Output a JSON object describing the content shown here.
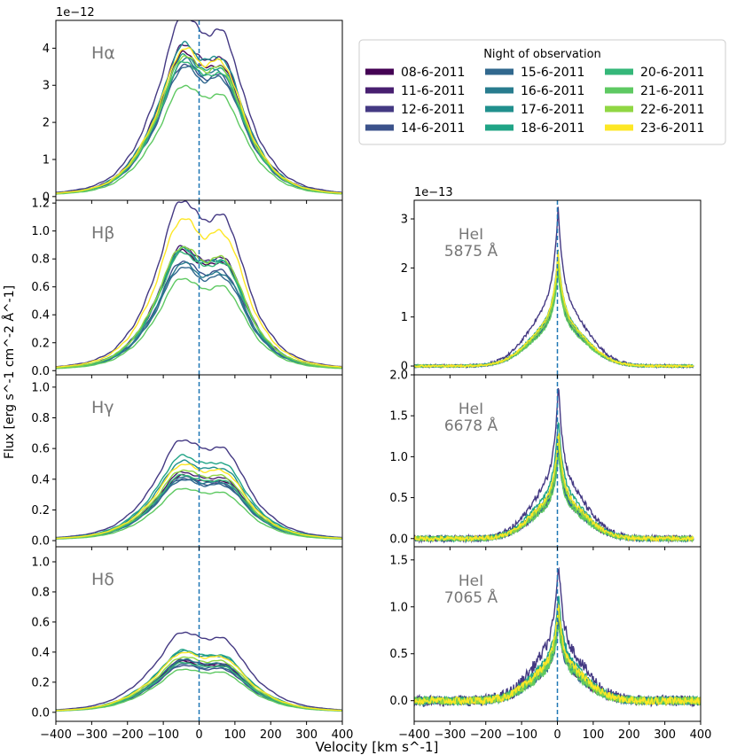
{
  "chart_data": {
    "type": "line",
    "title": "",
    "xlabel": "Velocity  [km s^-1]",
    "ylabel": "Flux   [erg s^-1 cm^-2 Å^-1]",
    "xlim": [
      -400,
      400
    ],
    "xticks": [
      -400,
      -300,
      -200,
      -100,
      0,
      100,
      200,
      300,
      400
    ],
    "xtick_labels": [
      "−400",
      "−300",
      "−200",
      "−100",
      "0",
      "100",
      "200",
      "300",
      "400"
    ],
    "legend": {
      "title": "Night of observation",
      "placement": "top-right",
      "nights": [
        "08-6-2011",
        "11-6-2011",
        "12-6-2011",
        "14-6-2011",
        "15-6-2011",
        "16-6-2011",
        "17-6-2011",
        "18-6-2011",
        "20-6-2011",
        "21-6-2011",
        "22-6-2011",
        "23-6-2011"
      ],
      "colors": [
        "#440154",
        "#481f70",
        "#443983",
        "#3b528b",
        "#31688e",
        "#287c8e",
        "#21908d",
        "#20a486",
        "#35b779",
        "#5ec962",
        "#90d743",
        "#fde725"
      ]
    },
    "reference_line": {
      "x": 0,
      "style": "dashed",
      "color": "#1f77b4"
    },
    "panels": [
      {
        "id": "halpha",
        "label": "Hα",
        "multiplier": "1e−12",
        "ylim": [
          -0.1,
          4.75
        ],
        "yticks": [
          0,
          1,
          2,
          3,
          4
        ],
        "ytick_labels": [
          "0",
          "1",
          "2",
          "3",
          "4"
        ],
        "profile": "double",
        "peak_height": 3.5,
        "core_sigma": 105,
        "wing_sigma": 240,
        "wing_frac": 0.1,
        "peak_sep": 55,
        "blue_peak_ratio": 1.0,
        "red_peak_ratio": 0.93,
        "dip_depth": 0.12,
        "night_scale": [
          1.02,
          1.08,
          1.29,
          0.94,
          0.92,
          0.97,
          1.08,
          1.0,
          0.96,
          0.79,
          1.0,
          1.05
        ]
      },
      {
        "id": "hbeta",
        "label": "Hβ",
        "multiplier": "",
        "ylim": [
          -0.03,
          1.22
        ],
        "yticks": [
          0.0,
          0.2,
          0.4,
          0.6,
          0.8,
          1.0,
          1.2
        ],
        "ytick_labels": [
          "0.0",
          "0.2",
          "0.4",
          "0.6",
          "0.8",
          "1.0",
          "1.2"
        ],
        "profile": "double",
        "peak_height": 0.82,
        "core_sigma": 105,
        "wing_sigma": 240,
        "wing_frac": 0.1,
        "peak_sep": 65,
        "blue_peak_ratio": 1.0,
        "red_peak_ratio": 0.97,
        "dip_depth": 0.14,
        "night_scale": [
          0.98,
          1.02,
          1.4,
          0.9,
          0.85,
          0.88,
          1.0,
          1.0,
          0.97,
          0.76,
          1.02,
          1.25
        ]
      },
      {
        "id": "hgamma",
        "label": "Hγ",
        "multiplier": "",
        "ylim": [
          -0.04,
          1.08
        ],
        "yticks": [
          0.0,
          0.2,
          0.4,
          0.6,
          0.8,
          1.0
        ],
        "ytick_labels": [
          "0.0",
          "0.2",
          "0.4",
          "0.6",
          "0.8",
          "1.0"
        ],
        "profile": "double",
        "peak_height": 0.42,
        "core_sigma": 110,
        "wing_sigma": 250,
        "wing_frac": 0.12,
        "peak_sep": 65,
        "blue_peak_ratio": 1.0,
        "red_peak_ratio": 0.96,
        "dip_depth": 0.1,
        "night_scale": [
          0.92,
          0.97,
          1.43,
          0.88,
          0.86,
          0.9,
          1.12,
          1.2,
          0.93,
          0.74,
          1.0,
          1.08
        ]
      },
      {
        "id": "hdelta",
        "label": "Hδ",
        "multiplier": "",
        "ylim": [
          -0.06,
          1.1
        ],
        "yticks": [
          0.0,
          0.2,
          0.4,
          0.6,
          0.8,
          1.0
        ],
        "ytick_labels": [
          "0.0",
          "0.2",
          "0.4",
          "0.6",
          "0.8",
          "1.0"
        ],
        "profile": "double",
        "peak_height": 0.33,
        "core_sigma": 115,
        "wing_sigma": 250,
        "wing_frac": 0.12,
        "peak_sep": 60,
        "blue_peak_ratio": 1.0,
        "red_peak_ratio": 0.95,
        "dip_depth": 0.08,
        "night_scale": [
          0.92,
          0.95,
          1.45,
          0.85,
          0.88,
          0.95,
          1.1,
          1.12,
          0.9,
          0.78,
          1.0,
          1.08
        ]
      },
      {
        "id": "hei5875",
        "label": "HeI",
        "label2": "5875 Å",
        "multiplier": "1e−13",
        "ylim": [
          -0.18,
          3.38
        ],
        "yticks": [
          0,
          1,
          2,
          3
        ],
        "ytick_labels": [
          "0",
          "1",
          "2",
          "3"
        ],
        "profile": "single",
        "peak_height": 2.15,
        "core_sigma": 14,
        "wing_sigma": 75,
        "wing_frac": 0.4,
        "peak_center": 2,
        "noise": 0.02,
        "xmax_data": 380,
        "night_scale": [
          0.95,
          1.0,
          1.5,
          0.95,
          0.93,
          0.98,
          1.05,
          1.1,
          1.0,
          0.9,
          1.0,
          1.08
        ]
      },
      {
        "id": "hei6678",
        "label": "HeI",
        "label2": "6678 Å",
        "multiplier": "",
        "ylim": [
          -0.1,
          2.0
        ],
        "yticks": [
          0.0,
          0.5,
          1.0,
          1.5,
          2.0
        ],
        "ytick_labels": [
          "0.0",
          "0.5",
          "1.0",
          "1.5",
          "2.0"
        ],
        "profile": "single",
        "peak_height": 1.2,
        "core_sigma": 12,
        "wing_sigma": 70,
        "wing_frac": 0.38,
        "peak_center": 3,
        "noise": 0.025,
        "xmax_data": 380,
        "night_scale": [
          0.92,
          1.0,
          1.62,
          0.95,
          0.9,
          1.02,
          1.1,
          1.25,
          1.0,
          0.88,
          1.02,
          1.12
        ]
      },
      {
        "id": "hei7065",
        "label": "HeI",
        "label2": "7065 Å",
        "multiplier": "",
        "ylim": [
          -0.22,
          1.64
        ],
        "yticks": [
          0.0,
          0.5,
          1.0,
          1.5
        ],
        "ytick_labels": [
          "0.0",
          "0.5",
          "1.0",
          "1.5"
        ],
        "profile": "single",
        "peak_height": 0.95,
        "core_sigma": 12,
        "wing_sigma": 70,
        "wing_frac": 0.4,
        "peak_center": 3,
        "noise": 0.04,
        "xmax_data": 400,
        "night_scale": [
          0.92,
          1.0,
          1.58,
          0.95,
          0.9,
          1.02,
          1.15,
          1.22,
          1.0,
          0.88,
          1.02,
          1.1
        ]
      }
    ]
  }
}
